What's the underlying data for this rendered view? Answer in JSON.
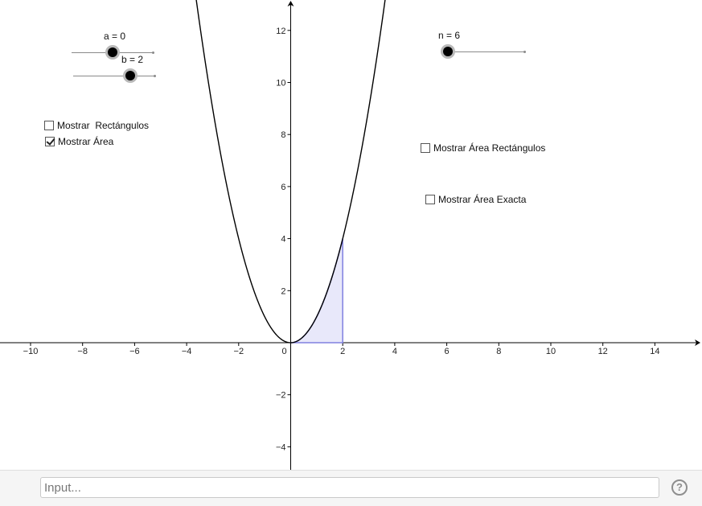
{
  "sliders": {
    "a": {
      "label": "a = 0",
      "value": 0
    },
    "b": {
      "label": "b = 2",
      "value": 2
    },
    "n": {
      "label": "n = 6",
      "value": 6
    }
  },
  "checkboxes": {
    "show_rectangles": {
      "label": "Mostrar  Rectángulos",
      "checked": false
    },
    "show_area": {
      "label": "Mostrar Área",
      "checked": true
    },
    "show_rect_area": {
      "label": "Mostrar Área Rectángulos",
      "checked": false
    },
    "show_exact_area": {
      "label": "Mostrar Área Exacta",
      "checked": false
    }
  },
  "graph": {
    "x_ticks": [
      "−10",
      "−8",
      "−6",
      "−4",
      "−2",
      "0",
      "2",
      "4",
      "6",
      "8",
      "10",
      "12",
      "14"
    ],
    "y_ticks": [
      "−4",
      "−2",
      "2",
      "4",
      "6",
      "8",
      "10",
      "12"
    ],
    "function_color": "#000000",
    "area_fill": "#e8e8fa",
    "area_stroke": "#8080e0"
  },
  "input_bar": {
    "placeholder": "Input...",
    "help_symbol": "?"
  }
}
